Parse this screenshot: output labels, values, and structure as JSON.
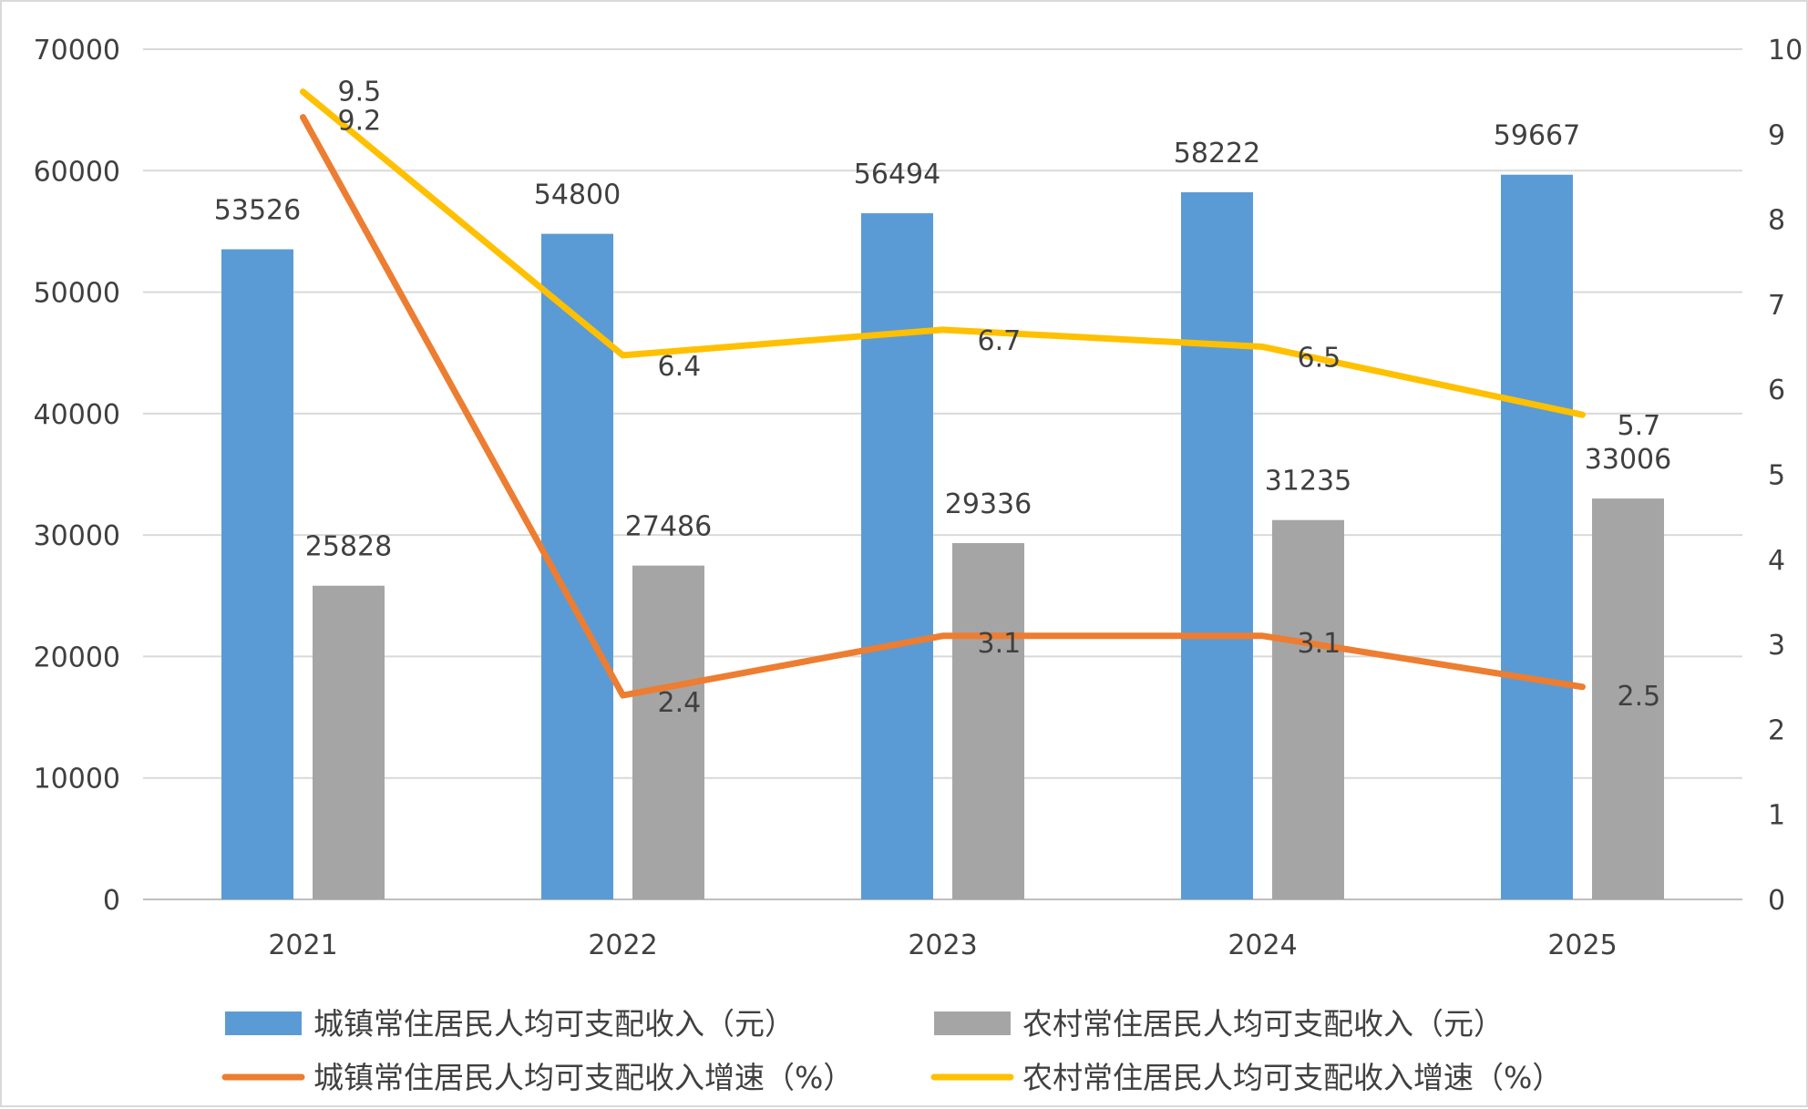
{
  "chart_data": {
    "type": "bar",
    "categories": [
      "2021",
      "2022",
      "2023",
      "2024",
      "2025"
    ],
    "y_left": {
      "range": [
        0,
        70000
      ],
      "ticks": [
        "0",
        "10000",
        "20000",
        "30000",
        "40000",
        "50000",
        "60000",
        "70000"
      ]
    },
    "y_right": {
      "range": [
        0,
        10
      ],
      "ticks": [
        "0",
        "1",
        "2",
        "3",
        "4",
        "5",
        "6",
        "7",
        "8",
        "9",
        "10"
      ]
    },
    "grid": true,
    "legend_position": "bottom",
    "bar_series": [
      {
        "name": "城镇常住居民人均可支配收入（元）",
        "axis": "left",
        "color": "#5b9bd5",
        "values": [
          53526,
          54800,
          56494,
          58222,
          59667
        ],
        "labels": [
          "53526",
          "54800",
          "56494",
          "58222",
          "59667"
        ]
      },
      {
        "name": "农村常住居民人均可支配收入（元）",
        "axis": "left",
        "color": "#a5a5a5",
        "values": [
          25828,
          27486,
          29336,
          31235,
          33006
        ],
        "labels": [
          "25828",
          "27486",
          "29336",
          "31235",
          "33006"
        ]
      }
    ],
    "line_series": [
      {
        "name": "城镇常住居民人均可支配收入增速（%）",
        "axis": "right",
        "color": "#ed7d31",
        "values": [
          9.2,
          2.4,
          3.1,
          3.1,
          2.5
        ],
        "labels": [
          "9.2",
          "2.4",
          "3.1",
          "3.1",
          "2.5"
        ]
      },
      {
        "name": "农村常住居民人均可支配收入增速（%）",
        "axis": "right",
        "color": "#ffc000",
        "values": [
          9.5,
          6.4,
          6.7,
          6.5,
          5.7
        ],
        "labels": [
          "9.5",
          "6.4",
          "6.7",
          "6.5",
          "5.7"
        ]
      }
    ]
  }
}
